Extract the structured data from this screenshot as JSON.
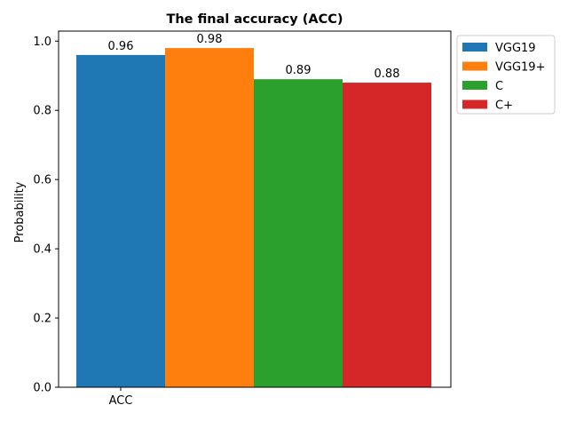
{
  "chart_data": {
    "type": "bar",
    "title": "The final accuracy (ACC)",
    "xlabel": "",
    "ylabel": "Probability",
    "categories": [
      "ACC"
    ],
    "ylim": [
      0,
      1.029
    ],
    "yticks": [
      0.0,
      0.2,
      0.4,
      0.6,
      0.8,
      1.0
    ],
    "ytick_labels": [
      "0.0",
      "0.2",
      "0.4",
      "0.6",
      "0.8",
      "1.0"
    ],
    "grid": false,
    "legend_position": "outside-top-right",
    "series": [
      {
        "name": "VGG19",
        "values": [
          0.96
        ],
        "label": "0.96",
        "color": "#1f77b4"
      },
      {
        "name": "VGG19+",
        "values": [
          0.98
        ],
        "label": "0.98",
        "color": "#ff7f0e"
      },
      {
        "name": "C",
        "values": [
          0.89
        ],
        "label": "0.89",
        "color": "#2ca02c"
      },
      {
        "name": "C+",
        "values": [
          0.88
        ],
        "label": "0.88",
        "color": "#d62728"
      }
    ]
  }
}
